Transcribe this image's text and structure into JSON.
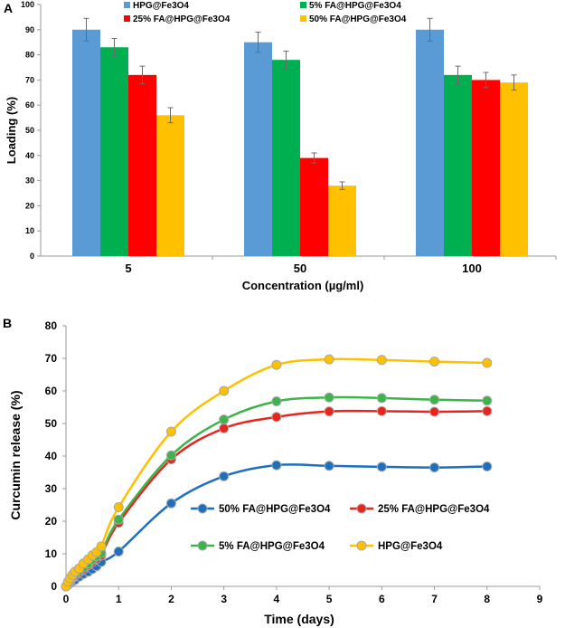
{
  "colors": {
    "hpg": "#5b9bd5",
    "fa5": "#00b050",
    "fa25": "#ff0000",
    "fa50": "#ffc000",
    "lineHpg": "#ffc000",
    "line5": "#3cb44b",
    "line25": "#e8241c",
    "line50": "#1f6fbf",
    "axis": "#9a9a9a",
    "text": "#000000"
  },
  "chart_data": [
    {
      "type": "bar",
      "panel_label": "A",
      "title": "",
      "xlabel": "Concentration (µg/ml)",
      "ylabel": "Loading (%)",
      "categories": [
        "5",
        "50",
        "100"
      ],
      "ylim": [
        0,
        100
      ],
      "yticks": [
        0,
        10,
        20,
        30,
        40,
        50,
        60,
        70,
        80,
        90,
        100
      ],
      "grid": false,
      "legend_position": "top",
      "series": [
        {
          "name": "HPG@Fe3O4",
          "color_key": "hpg",
          "values": [
            90,
            85,
            90
          ],
          "errors": [
            4.5,
            4,
            4.5
          ]
        },
        {
          "name": "5% FA@HPG@Fe3O4",
          "color_key": "fa5",
          "values": [
            83,
            78,
            72
          ],
          "errors": [
            3.5,
            3.5,
            3.5
          ]
        },
        {
          "name": "25% FA@HPG@Fe3O4",
          "color_key": "fa25",
          "values": [
            72,
            39,
            70
          ],
          "errors": [
            3.5,
            2,
            3
          ]
        },
        {
          "name": "50% FA@HPG@Fe3O4",
          "color_key": "fa50",
          "values": [
            56,
            28,
            69
          ],
          "errors": [
            3,
            1.5,
            3
          ]
        }
      ]
    },
    {
      "type": "line",
      "panel_label": "B",
      "title": "",
      "xlabel": "Time (days)",
      "ylabel": "Curcumin release (%)",
      "xlim": [
        0,
        9
      ],
      "ylim": [
        0,
        80
      ],
      "xticks": [
        0,
        1,
        2,
        3,
        4,
        5,
        6,
        7,
        8,
        9
      ],
      "yticks": [
        0,
        10,
        20,
        30,
        40,
        50,
        60,
        70,
        80
      ],
      "grid": false,
      "legend_position": "center-right",
      "series": [
        {
          "name": "50% FA@HPG@Fe3O4",
          "color_key": "line50",
          "x": [
            0,
            0.04,
            0.08,
            0.12,
            0.17,
            0.25,
            0.33,
            0.42,
            0.5,
            0.58,
            0.67,
            1,
            2,
            3,
            4,
            5,
            6,
            7,
            8
          ],
          "y": [
            0,
            0.5,
            1,
            1.5,
            2,
            3,
            3.8,
            4.5,
            5.3,
            6.2,
            7.5,
            10.7,
            25.5,
            33.8,
            37.2,
            37,
            36.7,
            36.5,
            36.8
          ]
        },
        {
          "name": "25% FA@HPG@Fe3O4",
          "color_key": "line25",
          "x": [
            0,
            0.04,
            0.08,
            0.12,
            0.17,
            0.25,
            0.33,
            0.42,
            0.5,
            0.58,
            0.67,
            1,
            2,
            3,
            4,
            5,
            6,
            7,
            8
          ],
          "y": [
            0,
            0.8,
            1.5,
            2.5,
            3.2,
            4.3,
            5.2,
            6.5,
            7.5,
            8.5,
            9.5,
            19.5,
            39,
            48.5,
            52,
            53.7,
            53.8,
            53.6,
            53.8
          ]
        },
        {
          "name": "5% FA@HPG@Fe3O4",
          "color_key": "line5",
          "x": [
            0,
            0.04,
            0.08,
            0.12,
            0.17,
            0.25,
            0.33,
            0.42,
            0.5,
            0.58,
            0.67,
            1,
            2,
            3,
            4,
            5,
            6,
            7,
            8
          ],
          "y": [
            0,
            1,
            2,
            3,
            3.8,
            4.8,
            5.8,
            7,
            8.2,
            9.2,
            10.2,
            20.5,
            40.2,
            51.2,
            56.8,
            58,
            57.8,
            57.3,
            57
          ]
        },
        {
          "name": "HPG@Fe3O4",
          "color_key": "lineHpg",
          "x": [
            0,
            0.04,
            0.08,
            0.12,
            0.17,
            0.25,
            0.33,
            0.42,
            0.5,
            0.58,
            0.67,
            1,
            2,
            3,
            4,
            5,
            6,
            7,
            8
          ],
          "y": [
            0,
            1.5,
            2.5,
            3.5,
            4.5,
            5.5,
            7,
            8.3,
            9.5,
            10.5,
            12.3,
            24.3,
            47.5,
            60,
            68,
            69.7,
            69.5,
            69,
            68.6
          ]
        }
      ]
    }
  ]
}
